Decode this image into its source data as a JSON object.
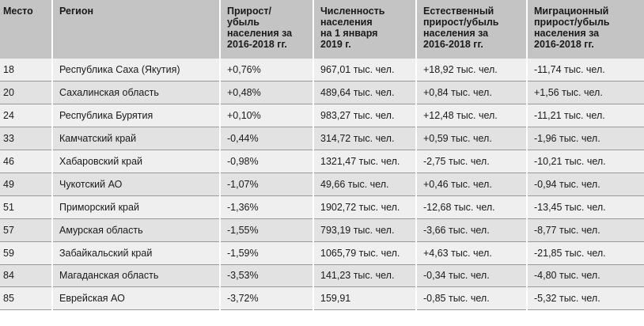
{
  "headers": [
    "Место",
    "Регион",
    "Прирост/\nубыль\nнаселения за\n2016-2018 гг.",
    "Численность\nнаселения\nна 1 января\n2019 г.",
    "Естественный\nприрост/убыль\nнаселения за\n2016-2018 гг.",
    "Миграционный\nприрост/убыль\nнаселения за\n2016-2018 гг."
  ],
  "rows": [
    [
      "18",
      "Республика Саха (Якутия)",
      "+0,76%",
      "967,01 тыс. чел.",
      "+18,92 тыс. чел.",
      "-11,74 тыс. чел."
    ],
    [
      "20",
      "Сахалинская область",
      "+0,48%",
      "489,64 тыс. чел.",
      "+0,84 тыс. чел.",
      "+1,56 тыс. чел."
    ],
    [
      "24",
      "Республика Бурятия",
      "+0,10%",
      "983,27 тыс. чел.",
      "+12,48 тыс. чел.",
      "-11,21 тыс. чел."
    ],
    [
      "33",
      "Камчатский край",
      "-0,44%",
      "314,72 тыс. чел.",
      "+0,59 тыс. чел.",
      "-1,96 тыс. чел."
    ],
    [
      "46",
      "Хабаровский край",
      "-0,98%",
      "1321,47 тыс. чел.",
      "-2,75 тыс. чел.",
      "-10,21 тыс. чел."
    ],
    [
      "49",
      "Чукотский АО",
      "-1,07%",
      "49,66 тыс. чел.",
      "+0,46 тыс. чел.",
      "-0,94 тыс. чел."
    ],
    [
      "51",
      "Приморский край",
      "-1,36%",
      "1902,72 тыс. чел.",
      "-12,68 тыс. чел.",
      "-13,45 тыс. чел."
    ],
    [
      "57",
      "Амурская область",
      "-1,55%",
      "793,19 тыс. чел.",
      "-3,66 тыс. чел.",
      "-8,77 тыс. чел."
    ],
    [
      "59",
      "Забайкальский край",
      "-1,59%",
      "1065,79 тыс. чел.",
      "+4,63 тыс. чел.",
      "-21,85 тыс. чел."
    ],
    [
      "84",
      "Магаданская область",
      "-3,53%",
      "141,23 тыс. чел.",
      "-0,34 тыс. чел.",
      "-4,80 тыс. чел."
    ],
    [
      "85",
      "Еврейская АО",
      "-3,72%",
      "159,91",
      "-0,85 тыс. чел.",
      "-5,32 тыс. чел."
    ]
  ]
}
